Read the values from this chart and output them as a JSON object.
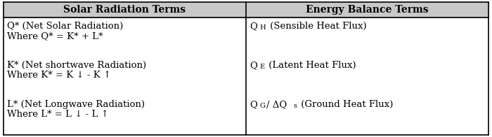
{
  "header_left": "Solar Radiation Terms",
  "header_right": "Energy Balance Terms",
  "left_row0_line1": "Q* (Net Solar Radiation)",
  "left_row0_line2": "Where Q* = K* + L*",
  "left_row1_line1": "K* (Net shortwave Radiation)",
  "left_row1_line2": "Where K* = K ↓ - K ↑",
  "left_row2_line1": "L* (Net Longwave Radiation)",
  "left_row2_line2": "Where L* = L ↓ - L ↑",
  "right_row0_pre": "Q",
  "right_row0_sub": "H",
  "right_row0_post": " (Sensible Heat Flux)",
  "right_row1_pre": "Q",
  "right_row1_sub": "E",
  "right_row1_post": " (Latent Heat Flux)",
  "right_row2_pre": "Q",
  "right_row2_sub": "G",
  "right_row2_mid": "/ ΔQ",
  "right_row2_sub2": "s",
  "right_row2_post": " (Ground Heat Flux)",
  "header_bg": "#c8c8c8",
  "cell_bg": "#ffffff",
  "border_color": "#000000",
  "header_fontsize": 10,
  "cell_fontsize": 9.5,
  "fig_width": 7.0,
  "fig_height": 1.96
}
